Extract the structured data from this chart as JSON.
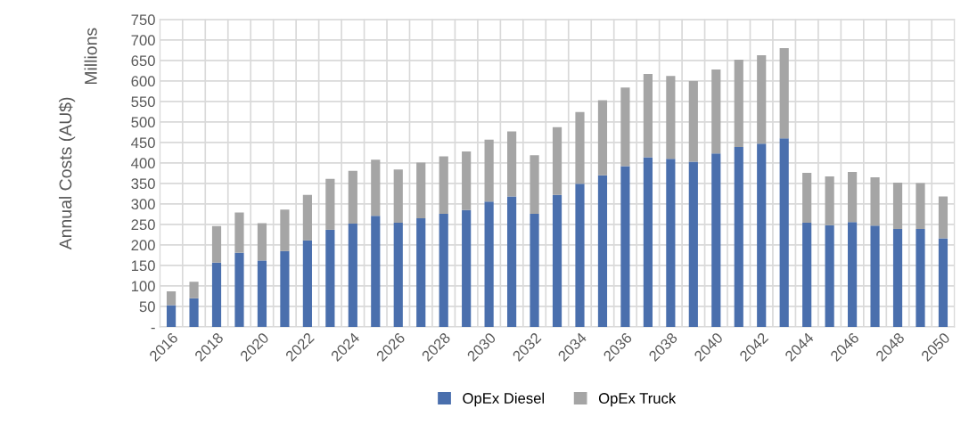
{
  "chart_data": {
    "type": "bar",
    "stacked": true,
    "ylabel": "Annual Costs (AU$)",
    "annotations": [
      "Millions"
    ],
    "categories": [
      "2016",
      null,
      "2018",
      null,
      "2020",
      null,
      "2022",
      null,
      "2024",
      null,
      "2026",
      null,
      "2028",
      null,
      "2030",
      null,
      "2032",
      null,
      "2034",
      null,
      "2036",
      null,
      "2038",
      null,
      "2040",
      null,
      "2042",
      null,
      "2044",
      null,
      "2046",
      null,
      "2048",
      null,
      "2050"
    ],
    "series": [
      {
        "name": "OpEx Diesel",
        "color": "#4a6fad",
        "values": [
          53,
          70,
          157,
          181,
          162,
          185,
          211,
          237,
          252,
          271,
          254,
          265,
          276,
          285,
          306,
          318,
          276,
          322,
          349,
          370,
          392,
          414,
          410,
          403,
          423,
          439,
          447,
          460,
          254,
          248,
          256,
          247,
          239,
          239,
          216
        ]
      },
      {
        "name": "OpEx Truck",
        "color": "#a5a5a5",
        "values": [
          34,
          40,
          89,
          98,
          91,
          101,
          111,
          124,
          129,
          137,
          130,
          136,
          140,
          143,
          151,
          159,
          143,
          165,
          175,
          183,
          192,
          203,
          202,
          197,
          205,
          213,
          216,
          220,
          122,
          119,
          122,
          118,
          113,
          112,
          102
        ]
      }
    ],
    "ylim": [
      0,
      750
    ],
    "yticks": [
      {
        "value": 0,
        "label": "-"
      },
      50,
      100,
      150,
      200,
      250,
      300,
      350,
      400,
      450,
      500,
      550,
      600,
      650,
      700,
      750
    ],
    "grid": true,
    "legend": "bottom"
  }
}
